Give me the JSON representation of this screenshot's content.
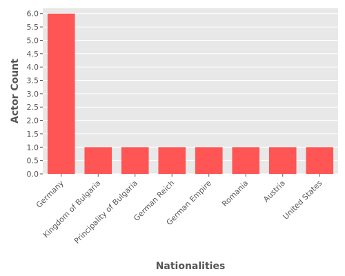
{
  "chart_data": {
    "type": "bar",
    "categories": [
      "Germany",
      "Kingdom of Bulgaria",
      "Principality of Bulgaria",
      "German Reich",
      "German Empire",
      "Romania",
      "Austria",
      "United States"
    ],
    "values": [
      6,
      1,
      1,
      1,
      1,
      1,
      1,
      1
    ],
    "xlabel": "Nationalities",
    "ylabel": "Actor Count",
    "ylim": [
      0,
      6.2
    ],
    "yticks": [
      "0.0",
      "0.5",
      "1.0",
      "1.5",
      "2.0",
      "2.5",
      "3.0",
      "3.5",
      "4.0",
      "4.5",
      "5.0",
      "5.5",
      "6.0"
    ],
    "grid": true,
    "colors": {
      "bar": "#ff5555",
      "plot_background": "#e8e8e8",
      "grid": "#ffffff",
      "text": "#555555"
    }
  }
}
